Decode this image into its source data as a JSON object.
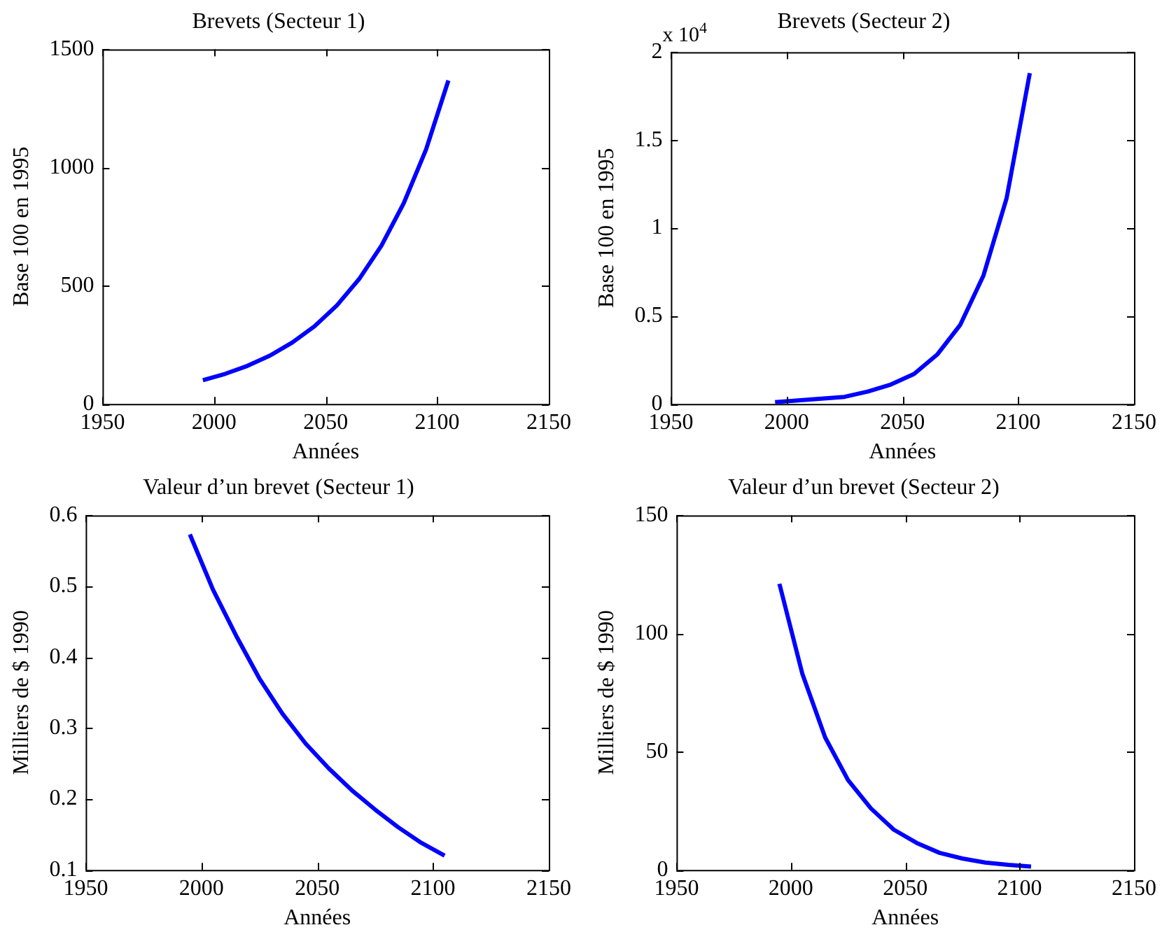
{
  "chart_data": [
    {
      "type": "line",
      "title": "Brevets (Secteur 1)",
      "xlabel": "Années",
      "ylabel": "Base 100 en 1995",
      "x": [
        1995,
        2005,
        2015,
        2025,
        2035,
        2045,
        2055,
        2065,
        2075,
        2085,
        2095,
        2105
      ],
      "xlim": [
        1950,
        2150
      ],
      "xticks": [
        1950,
        2000,
        2050,
        2100,
        2150
      ],
      "ylim": [
        0,
        1500
      ],
      "yticks": [
        0,
        500,
        1000,
        1500
      ],
      "series": [
        {
          "color": "#0000ff",
          "values": [
            100,
            127,
            161,
            204,
            259,
            328,
            416,
            528,
            669,
            849,
            1076,
            1368
          ]
        }
      ]
    },
    {
      "type": "line",
      "title": "Brevets (Secteur 2)",
      "xlabel": "Années",
      "ylabel": "Base 100 en 1995",
      "annotations": [
        "x 10$^{4}$"
      ],
      "x": [
        1995,
        2005,
        2015,
        2025,
        2035,
        2045,
        2055,
        2065,
        2075,
        2085,
        2095,
        2105
      ],
      "xlim": [
        1950,
        2150
      ],
      "xticks": [
        1950,
        2000,
        2050,
        2100,
        2150
      ],
      "ylim": [
        0,
        2
      ],
      "yticks": [
        0,
        0.5,
        1,
        1.5,
        2
      ],
      "series": [
        {
          "color": "#0000ff",
          "values": [
            0.01,
            0.02,
            0.03,
            0.04,
            0.07,
            0.11,
            0.17,
            0.28,
            0.45,
            0.73,
            1.17,
            1.88
          ]
        }
      ]
    },
    {
      "type": "line",
      "title": "Valeur d’un brevet (Secteur 1)",
      "xlabel": "Années",
      "ylabel": "Milliers de $ 1990",
      "x": [
        1995,
        2005,
        2015,
        2025,
        2035,
        2045,
        2055,
        2065,
        2075,
        2085,
        2095,
        2105
      ],
      "xlim": [
        1950,
        2150
      ],
      "xticks": [
        1950,
        2000,
        2050,
        2100,
        2150
      ],
      "ylim": [
        0.1,
        0.6
      ],
      "yticks": [
        0.1,
        0.2,
        0.3,
        0.4,
        0.5,
        0.6
      ],
      "series": [
        {
          "color": "#0000ff",
          "values": [
            0.573,
            0.495,
            0.43,
            0.37,
            0.32,
            0.278,
            0.243,
            0.212,
            0.185,
            0.16,
            0.138,
            0.12
          ]
        }
      ]
    },
    {
      "type": "line",
      "title": "Valeur d’un brevet (Secteur 2)",
      "xlabel": "Années",
      "ylabel": "Milliers de $ 1990",
      "x": [
        1995,
        2005,
        2015,
        2025,
        2035,
        2045,
        2055,
        2065,
        2075,
        2085,
        2095,
        2105
      ],
      "xlim": [
        1950,
        2150
      ],
      "xticks": [
        1950,
        2000,
        2050,
        2100,
        2150
      ],
      "ylim": [
        0,
        150
      ],
      "yticks": [
        0,
        50,
        100,
        150
      ],
      "series": [
        {
          "color": "#0000ff",
          "values": [
            121,
            83,
            56,
            38,
            26,
            17,
            11.4,
            7.2,
            4.8,
            3.1,
            2.1,
            1.4
          ]
        }
      ]
    }
  ]
}
